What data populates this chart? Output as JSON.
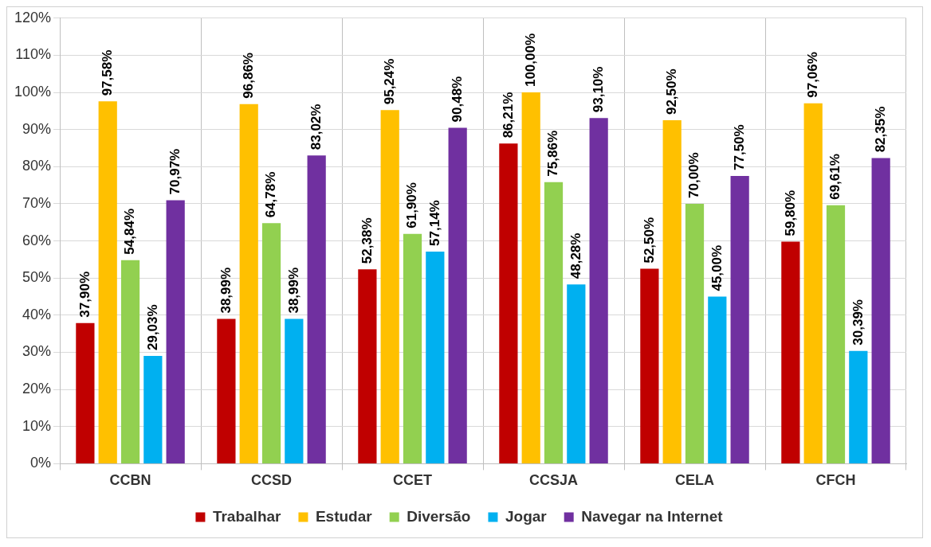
{
  "chart_data": {
    "type": "bar",
    "categories": [
      "CCBN",
      "CCSD",
      "CCET",
      "CCSJA",
      "CELA",
      "CFCH"
    ],
    "series": [
      {
        "name": "Trabalhar",
        "color": "#c00000",
        "values": [
          37.9,
          38.99,
          52.38,
          86.21,
          52.5,
          59.8
        ],
        "value_labels": [
          "37,90%",
          "38,99%",
          "52,38%",
          "86,21%",
          "52,50%",
          "59,80%"
        ]
      },
      {
        "name": "Estudar",
        "color": "#ffc000",
        "values": [
          97.58,
          96.86,
          95.24,
          100,
          92.5,
          97.06
        ],
        "value_labels": [
          "97,58%",
          "96,86%",
          "95,24%",
          "100,00%",
          "92,50%",
          "97,06%"
        ]
      },
      {
        "name": "Diversão",
        "color": "#92d050",
        "values": [
          54.84,
          64.78,
          61.9,
          75.86,
          70,
          69.61
        ],
        "value_labels": [
          "54,84%",
          "64,78%",
          "61,90%",
          "75,86%",
          "70,00%",
          "69,61%"
        ]
      },
      {
        "name": "Jogar",
        "color": "#00b0f0",
        "values": [
          29.03,
          38.99,
          57.14,
          48.28,
          45,
          30.39
        ],
        "value_labels": [
          "29,03%",
          "38,99%",
          "57,14%",
          "48,28%",
          "45,00%",
          "30,39%"
        ]
      },
      {
        "name": "Navegar na Internet",
        "color": "#7030a0",
        "values": [
          70.97,
          83.02,
          90.48,
          93.1,
          77.5,
          82.35
        ],
        "value_labels": [
          "70,97%",
          "83,02%",
          "90,48%",
          "93,10%",
          "77,50%",
          "82,35%"
        ]
      }
    ],
    "ylim": [
      0,
      120
    ],
    "yticks": [
      {
        "value": 0,
        "label": "0%"
      },
      {
        "value": 10,
        "label": "10%"
      },
      {
        "value": 20,
        "label": "20%"
      },
      {
        "value": 30,
        "label": "30%"
      },
      {
        "value": 40,
        "label": "40%"
      },
      {
        "value": 50,
        "label": "50%"
      },
      {
        "value": 60,
        "label": "60%"
      },
      {
        "value": 70,
        "label": "70%"
      },
      {
        "value": 80,
        "label": "80%"
      },
      {
        "value": 90,
        "label": "90%"
      },
      {
        "value": 100,
        "label": "100%"
      },
      {
        "value": 110,
        "label": "110%"
      },
      {
        "value": 120,
        "label": "120%"
      }
    ],
    "grid": true,
    "legend": "bottom"
  }
}
